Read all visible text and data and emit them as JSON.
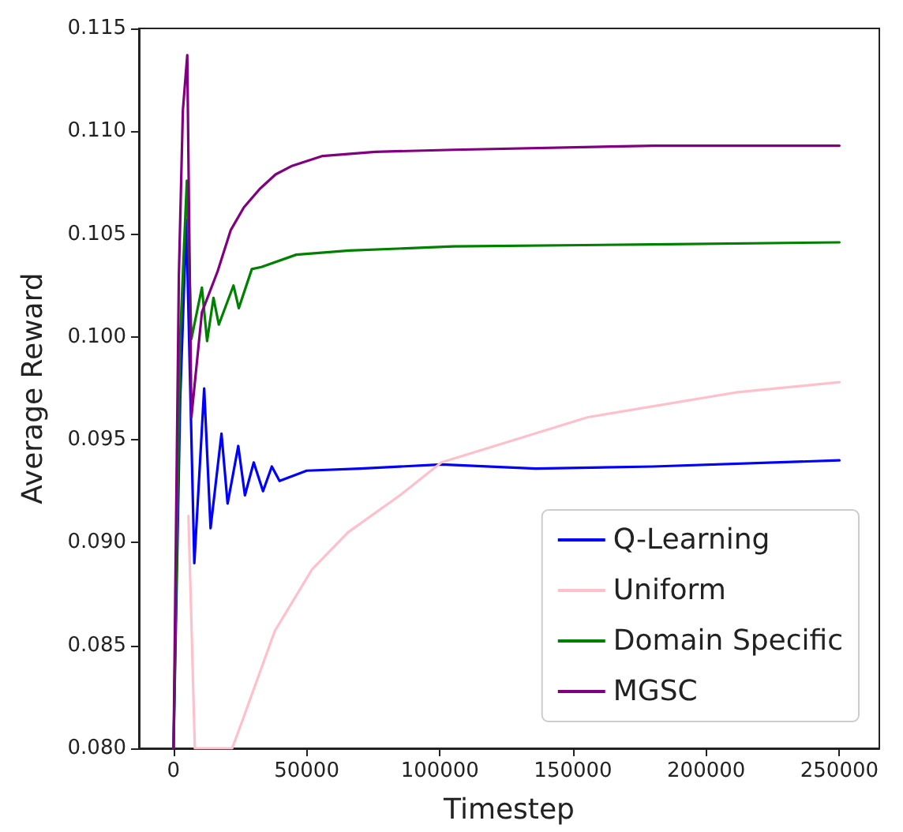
{
  "chart_data": {
    "type": "line",
    "xlabel": "Timestep",
    "ylabel": "Average Reward",
    "xlim": [
      -13000,
      265000
    ],
    "ylim": [
      0.08,
      0.115
    ],
    "xticks": [
      0,
      50000,
      100000,
      150000,
      200000,
      250000
    ],
    "yticks": [
      {
        "value": 0.08,
        "label": "0.080"
      },
      {
        "value": 0.085,
        "label": "0.085"
      },
      {
        "value": 0.09,
        "label": "0.090"
      },
      {
        "value": 0.095,
        "label": "0.095"
      },
      {
        "value": 0.1,
        "label": "0.100"
      },
      {
        "value": 0.105,
        "label": "0.105"
      },
      {
        "value": 0.11,
        "label": "0.110"
      },
      {
        "value": 0.115,
        "label": "0.115"
      }
    ],
    "grid": false,
    "legend": "bottom right",
    "marker": "none",
    "line_style": "solid",
    "series": [
      {
        "name": "Q-Learning",
        "color": "#0000ff",
        "x": [
          0,
          2500,
          4800,
          7800,
          11500,
          13900,
          18000,
          20300,
          24300,
          26800,
          30100,
          33600,
          36900,
          39800,
          50000,
          70000,
          100600,
          136000,
          180000,
          250000
        ],
        "values": [
          0.08,
          0.097,
          0.1057,
          0.089,
          0.0975,
          0.0907,
          0.0953,
          0.0919,
          0.0947,
          0.0923,
          0.0939,
          0.0925,
          0.0937,
          0.093,
          0.0935,
          0.0936,
          0.0938,
          0.0936,
          0.0937,
          0.094
        ]
      },
      {
        "name": "Uniform",
        "color": "#ffc0cb",
        "x": [
          5600,
          8000,
          22000,
          26000,
          38000,
          52000,
          65500,
          85000,
          100600,
          155600,
          211000,
          250000
        ],
        "values": [
          0.0913,
          0.08,
          0.08,
          0.0814,
          0.0857,
          0.0887,
          0.0905,
          0.0923,
          0.0939,
          0.0961,
          0.0973,
          0.0978
        ]
      },
      {
        "name": "Domain Specific",
        "color": "#008000",
        "x": [
          0,
          2500,
          5000,
          6700,
          10650,
          12600,
          15000,
          17000,
          22500,
          24500,
          29400,
          33000,
          46100,
          66000,
          105000,
          180000,
          250000
        ],
        "values": [
          0.08,
          0.1,
          0.1076,
          0.0999,
          0.1024,
          0.0998,
          0.1019,
          0.1006,
          0.1025,
          0.1014,
          0.1033,
          0.1034,
          0.104,
          0.1042,
          0.1044,
          0.1045,
          0.1046
        ]
      },
      {
        "name": "MGSC",
        "color": "#800080",
        "x": [
          0,
          2000,
          3500,
          5150,
          6700,
          10650,
          16570,
          21500,
          26400,
          32400,
          38300,
          44200,
          56000,
          75700,
          105300,
          180000,
          250000
        ],
        "values": [
          0.08,
          0.103,
          0.111,
          0.1137,
          0.0961,
          0.1012,
          0.1032,
          0.1052,
          0.1063,
          0.1072,
          0.1079,
          0.1083,
          0.1088,
          0.109,
          0.1091,
          0.1093,
          0.1093
        ]
      }
    ]
  }
}
